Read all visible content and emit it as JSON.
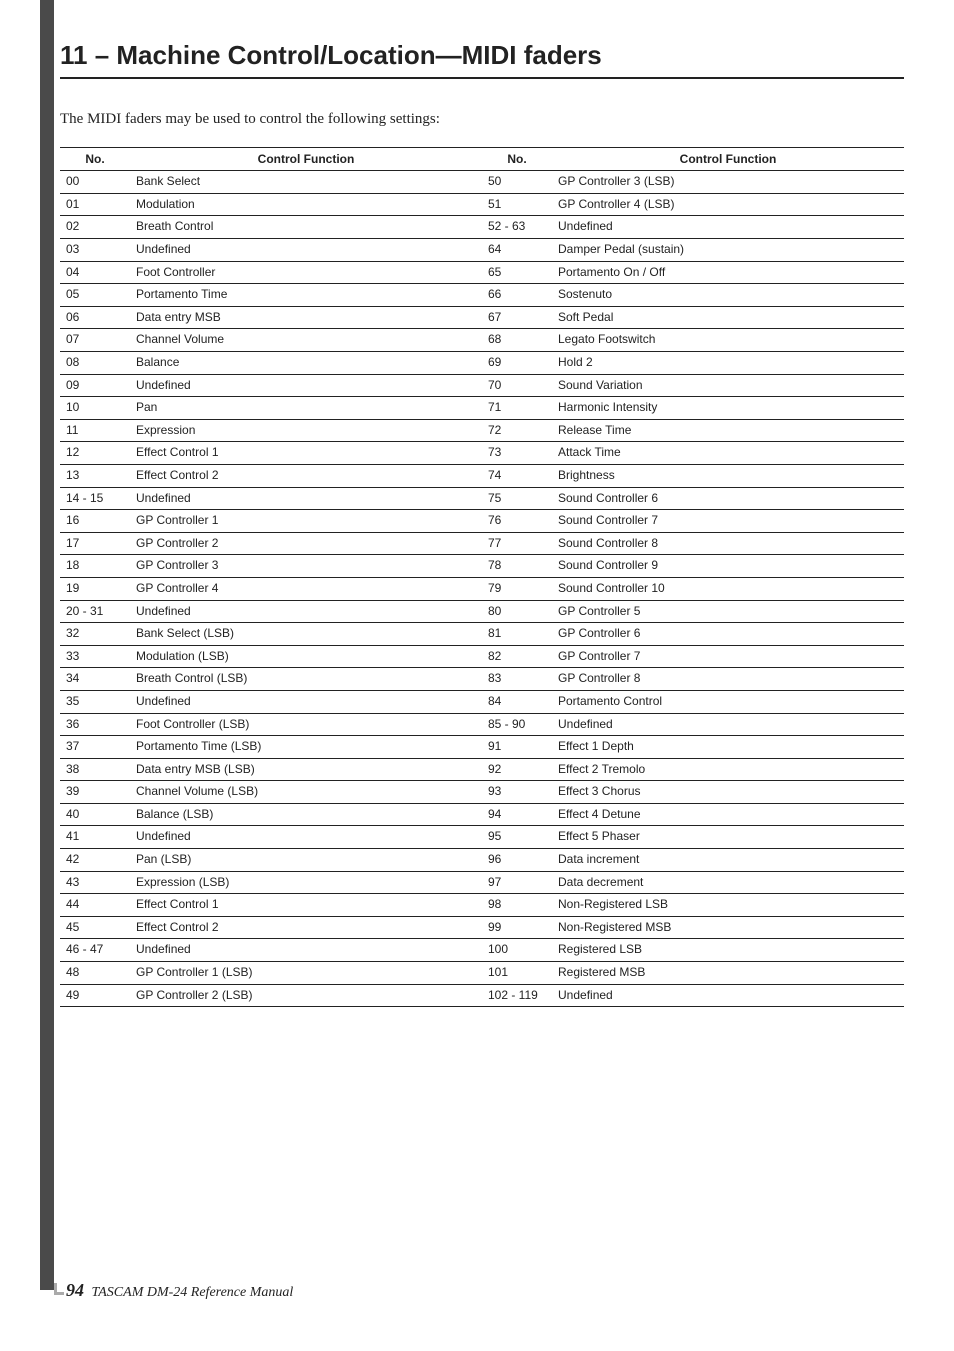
{
  "chapter_title": "11 – Machine Control/Location—MIDI faders",
  "intro": "The MIDI faders may be used to control the following settings:",
  "table": {
    "headers": {
      "no": "No.",
      "fn": "Control Function"
    },
    "left": [
      {
        "no": "00",
        "fn": "Bank Select"
      },
      {
        "no": "01",
        "fn": "Modulation"
      },
      {
        "no": "02",
        "fn": "Breath Control"
      },
      {
        "no": "03",
        "fn": "Undefined"
      },
      {
        "no": "04",
        "fn": "Foot Controller"
      },
      {
        "no": "05",
        "fn": "Portamento Time"
      },
      {
        "no": "06",
        "fn": "Data entry MSB"
      },
      {
        "no": "07",
        "fn": "Channel Volume"
      },
      {
        "no": "08",
        "fn": "Balance"
      },
      {
        "no": "09",
        "fn": "Undefined"
      },
      {
        "no": "10",
        "fn": "Pan"
      },
      {
        "no": "11",
        "fn": "Expression"
      },
      {
        "no": "12",
        "fn": "Effect Control 1"
      },
      {
        "no": "13",
        "fn": "Effect Control 2"
      },
      {
        "no": "14 - 15",
        "fn": "Undefined"
      },
      {
        "no": "16",
        "fn": "GP Controller 1"
      },
      {
        "no": "17",
        "fn": "GP Controller 2"
      },
      {
        "no": "18",
        "fn": "GP Controller 3"
      },
      {
        "no": "19",
        "fn": "GP Controller 4"
      },
      {
        "no": "20 - 31",
        "fn": "Undefined"
      },
      {
        "no": "32",
        "fn": "Bank Select (LSB)"
      },
      {
        "no": "33",
        "fn": "Modulation (LSB)"
      },
      {
        "no": "34",
        "fn": "Breath Control (LSB)"
      },
      {
        "no": "35",
        "fn": "Undefined"
      },
      {
        "no": "36",
        "fn": "Foot Controller (LSB)"
      },
      {
        "no": "37",
        "fn": "Portamento Time (LSB)"
      },
      {
        "no": "38",
        "fn": "Data entry MSB (LSB)"
      },
      {
        "no": "39",
        "fn": "Channel Volume (LSB)"
      },
      {
        "no": "40",
        "fn": "Balance (LSB)"
      },
      {
        "no": "41",
        "fn": "Undefined"
      },
      {
        "no": "42",
        "fn": "Pan (LSB)"
      },
      {
        "no": "43",
        "fn": "Expression (LSB)"
      },
      {
        "no": "44",
        "fn": "Effect Control 1"
      },
      {
        "no": "45",
        "fn": "Effect Control 2"
      },
      {
        "no": "46 - 47",
        "fn": "Undefined"
      },
      {
        "no": "48",
        "fn": "GP Controller 1 (LSB)"
      },
      {
        "no": "49",
        "fn": "GP Controller 2 (LSB)"
      }
    ],
    "right": [
      {
        "no": "50",
        "fn": "GP Controller 3 (LSB)"
      },
      {
        "no": "51",
        "fn": "GP Controller 4 (LSB)"
      },
      {
        "no": "52 - 63",
        "fn": "Undefined"
      },
      {
        "no": "64",
        "fn": "Damper Pedal (sustain)"
      },
      {
        "no": "65",
        "fn": "Portamento On / Off"
      },
      {
        "no": "66",
        "fn": "Sostenuto"
      },
      {
        "no": "67",
        "fn": "Soft Pedal"
      },
      {
        "no": "68",
        "fn": "Legato Footswitch"
      },
      {
        "no": "69",
        "fn": "Hold 2"
      },
      {
        "no": "70",
        "fn": "Sound Variation"
      },
      {
        "no": "71",
        "fn": "Harmonic Intensity"
      },
      {
        "no": "72",
        "fn": "Release Time"
      },
      {
        "no": "73",
        "fn": "Attack Time"
      },
      {
        "no": "74",
        "fn": "Brightness"
      },
      {
        "no": "75",
        "fn": "Sound Controller 6"
      },
      {
        "no": "76",
        "fn": "Sound Controller 7"
      },
      {
        "no": "77",
        "fn": "Sound Controller 8"
      },
      {
        "no": "78",
        "fn": "Sound Controller 9"
      },
      {
        "no": "79",
        "fn": "Sound Controller 10"
      },
      {
        "no": "80",
        "fn": "GP Controller 5"
      },
      {
        "no": "81",
        "fn": "GP Controller 6"
      },
      {
        "no": "82",
        "fn": "GP Controller 7"
      },
      {
        "no": "83",
        "fn": "GP Controller 8"
      },
      {
        "no": "84",
        "fn": "Portamento Control"
      },
      {
        "no": "85 - 90",
        "fn": "Undefined"
      },
      {
        "no": "91",
        "fn": "Effect 1 Depth"
      },
      {
        "no": "92",
        "fn": "Effect 2 Tremolo"
      },
      {
        "no": "93",
        "fn": "Effect 3 Chorus"
      },
      {
        "no": "94",
        "fn": "Effect 4 Detune"
      },
      {
        "no": "95",
        "fn": "Effect 5 Phaser"
      },
      {
        "no": "96",
        "fn": "Data increment"
      },
      {
        "no": "97",
        "fn": "Data decrement"
      },
      {
        "no": "98",
        "fn": "Non-Registered LSB"
      },
      {
        "no": "99",
        "fn": "Non-Registered MSB"
      },
      {
        "no": "100",
        "fn": "Registered LSB"
      },
      {
        "no": "101",
        "fn": "Registered MSB"
      },
      {
        "no": "102 - 119",
        "fn": "Undefined"
      }
    ]
  },
  "footer": {
    "page": "94",
    "text": "TASCAM DM-24 Reference Manual"
  }
}
